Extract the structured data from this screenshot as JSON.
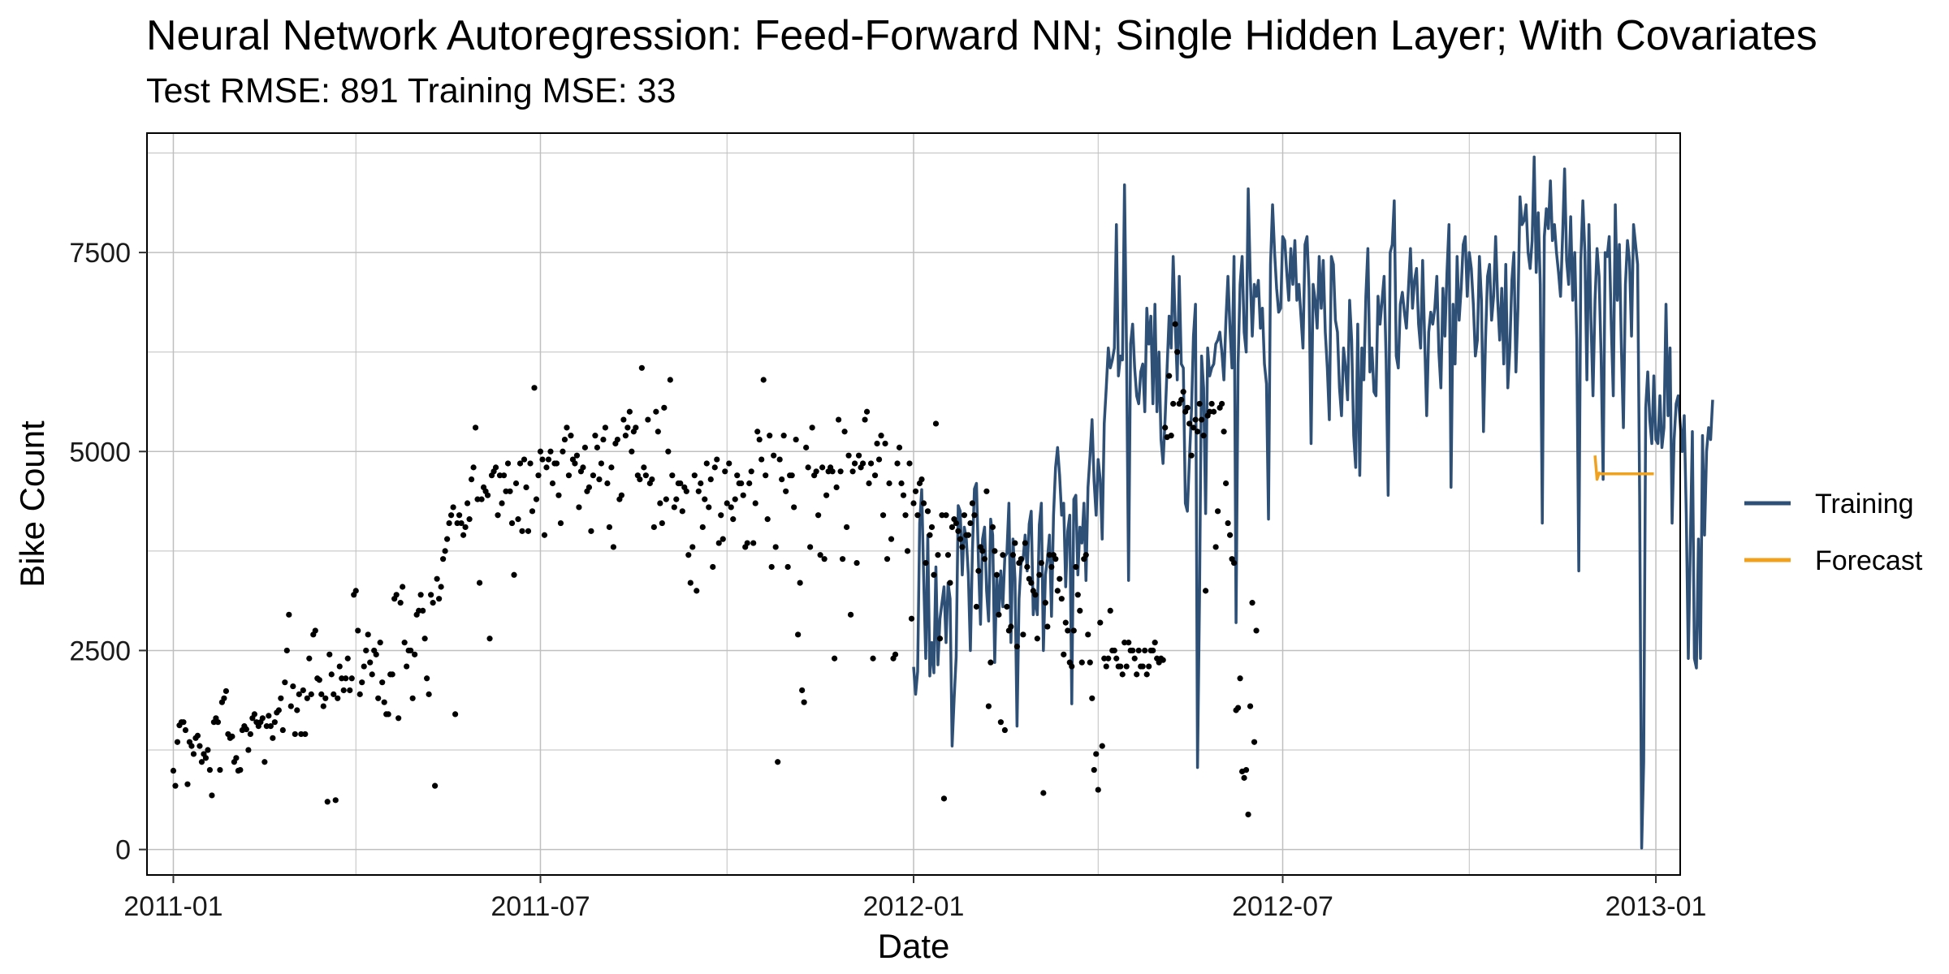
{
  "title": "Neural Network Autoregression: Feed-Forward NN; Single Hidden Layer; With Covariates",
  "subtitle": "Test RMSE: 891 Training MSE: 33",
  "chart_data": {
    "type": "line",
    "xlabel": "Date",
    "ylabel": "Bike Count",
    "x_range": [
      "2010-12-19",
      "2013-01-13"
    ],
    "y_range": [
      -320,
      9000
    ],
    "x_ticks": [
      {
        "label": "2011-01",
        "date": "2011-01-01"
      },
      {
        "label": "2011-07",
        "date": "2011-07-01"
      },
      {
        "label": "2012-01",
        "date": "2012-01-01"
      },
      {
        "label": "2012-07",
        "date": "2012-07-01"
      },
      {
        "label": "2013-01",
        "date": "2013-01-01"
      }
    ],
    "y_ticks": [
      0,
      2500,
      5000,
      7500
    ],
    "grid": true,
    "legend_position": "right",
    "colors": {
      "points": "#000000",
      "training": "#2e5077",
      "forecast": "#f0a11e",
      "grid": "#bfbfbf"
    },
    "series": [
      {
        "name": "Training",
        "color": "#2e5077",
        "start": "2012-01-01",
        "values": [
          2294,
          1951,
          2236,
          4100,
          4521,
          3380,
          2400,
          3950,
          2180,
          2600,
          2220,
          3550,
          2320,
          2900,
          3100,
          3300,
          2600,
          3350,
          3150,
          1300,
          1900,
          2420,
          4320,
          4250,
          3450,
          4050,
          3900,
          3450,
          2500,
          3750,
          4530,
          4600,
          3600,
          2830,
          3900,
          4050,
          3250,
          2870,
          4150,
          3950,
          2350,
          3450,
          2950,
          3500,
          3050,
          3680,
          3720,
          4350,
          2600,
          3900,
          3400,
          1550,
          3150,
          3600,
          3650,
          3950,
          3500,
          4090,
          4250,
          2950,
          3200,
          2950,
          4080,
          4350,
          2500,
          3450,
          3650,
          3950,
          2930,
          4200,
          4800,
          5050,
          4700,
          4200,
          4350,
          3300,
          4000,
          4200,
          1830,
          4400,
          4450,
          3450,
          4050,
          3850,
          4350,
          3380,
          4550,
          4950,
          5400,
          4630,
          4200,
          4900,
          4650,
          3900,
          5350,
          5800,
          6300,
          6050,
          6150,
          6300,
          7850,
          5950,
          6200,
          6150,
          8350,
          6250,
          3380,
          6350,
          6600,
          6050,
          5700,
          5600,
          6000,
          6100,
          5500,
          6800,
          6350,
          6700,
          5600,
          6850,
          5500,
          6250,
          5150,
          4850,
          5400,
          6050,
          6700,
          6300,
          7450,
          6600,
          5900,
          7200,
          6100,
          6050,
          4350,
          4250,
          4900,
          5500,
          6450,
          6850,
          1030,
          3210,
          6200,
          5800,
          4220,
          6300,
          5950,
          6050,
          6100,
          6350,
          6400,
          6500,
          6250,
          5900,
          6650,
          7200,
          6550,
          6050,
          7450,
          2850,
          6100,
          7100,
          7450,
          6500,
          6250,
          8300,
          7200,
          6450,
          7100,
          6950,
          7150,
          6550,
          6800,
          6100,
          5850,
          4150,
          7350,
          8100,
          7500,
          7050,
          6750,
          6800,
          7700,
          7650,
          7250,
          6900,
          7550,
          7100,
          7650,
          6900,
          7100,
          6700,
          6300,
          7600,
          7700,
          7050,
          5100,
          7100,
          6900,
          6550,
          7450,
          6800,
          7400,
          6500,
          6050,
          5400,
          7450,
          7350,
          6650,
          6500,
          5800,
          5450,
          6300,
          6050,
          5650,
          6900,
          6400,
          5200,
          4800,
          6600,
          4700,
          6300,
          5900,
          6950,
          7550,
          6000,
          6300,
          5750,
          5700,
          6950,
          6600,
          6900,
          7200,
          6150,
          4450,
          7500,
          7600,
          8150,
          6200,
          6050,
          6850,
          7000,
          6750,
          6550,
          7050,
          7550,
          6800,
          7150,
          7300,
          6600,
          6300,
          7400,
          6400,
          5450,
          6500,
          6750,
          6600,
          6800,
          7200,
          6250,
          5800,
          7050,
          6450,
          7250,
          7850,
          4550,
          6850,
          6100,
          7450,
          6650,
          7050,
          7600,
          7700,
          6950,
          7500,
          7300,
          6850,
          6200,
          6400,
          7450,
          6900,
          5250,
          6400,
          7200,
          7350,
          6650,
          6950,
          7700,
          6900,
          6400,
          7050,
          6100,
          7350,
          5800,
          6300,
          7150,
          7500,
          6000,
          6800,
          8200,
          7850,
          7900,
          8100,
          7500,
          7300,
          7650,
          8700,
          7250,
          8000,
          7100,
          4100,
          7700,
          8050,
          7800,
          8400,
          7650,
          7850,
          7500,
          7250,
          6950,
          7700,
          8550,
          7400,
          7100,
          7950,
          6900,
          7500,
          6400,
          3500,
          7400,
          8150,
          7500,
          5900,
          7850,
          6650,
          5700,
          6900,
          7550,
          7200,
          6200,
          4650,
          7500,
          7450,
          7700,
          6600,
          5700,
          8100,
          6900,
          7600,
          6300,
          5300,
          7100,
          7650,
          7400,
          6450,
          7850,
          7600,
          7350,
          4450,
          18,
          1100,
          5550,
          6000,
          5400,
          5100,
          5950,
          5150,
          5100,
          5700,
          5050,
          5300,
          6850,
          5450,
          6300,
          4100,
          5150,
          5600,
          5700,
          5350,
          5000,
          5450,
          4200,
          2400,
          3850,
          5250,
          2400,
          2280,
          3900,
          2400,
          5200,
          3950,
          5000,
          5300,
          5150,
          5650
        ]
      },
      {
        "name": "Forecast",
        "color": "#f0a11e",
        "start": "2012-12-02",
        "values": [
          4950,
          4650,
          4730,
          4720,
          4720,
          4720,
          4720,
          4720,
          4720,
          4720,
          4720,
          4720,
          4720,
          4720,
          4720,
          4720,
          4720,
          4720,
          4720,
          4720,
          4720,
          4720,
          4720,
          4720,
          4720,
          4720,
          4720,
          4720,
          4720,
          4720
        ]
      }
    ],
    "observed_points": {
      "start": "2011-01-01",
      "values": [
        990,
        800,
        1350,
        1560,
        1600,
        1600,
        1500,
        820,
        1350,
        1300,
        1200,
        1400,
        1430,
        1300,
        1100,
        1200,
        1150,
        1250,
        1000,
        680,
        1600,
        1650,
        1600,
        1000,
        1850,
        1900,
        1990,
        1450,
        1400,
        1420,
        1100,
        1150,
        990,
        1000,
        1500,
        1550,
        1510,
        1250,
        1450,
        1650,
        1700,
        1600,
        1550,
        1600,
        1650,
        1100,
        1550,
        1680,
        1550,
        1400,
        1600,
        1720,
        1750,
        1900,
        1500,
        2100,
        2500,
        2950,
        1800,
        2050,
        1450,
        1750,
        1950,
        1450,
        2000,
        1450,
        1900,
        2400,
        1950,
        2700,
        2750,
        2150,
        2130,
        1950,
        1800,
        1900,
        600,
        2450,
        2200,
        1950,
        620,
        1900,
        2300,
        2150,
        2000,
        2150,
        2400,
        2000,
        2150,
        3200,
        3250,
        2750,
        1950,
        2100,
        2300,
        2500,
        2700,
        2350,
        2200,
        2500,
        2450,
        1900,
        2600,
        2100,
        1850,
        1700,
        1700,
        2200,
        2200,
        3150,
        3200,
        1650,
        3100,
        3300,
        2600,
        2300,
        2500,
        2500,
        1900,
        2450,
        2950,
        3000,
        3200,
        3000,
        2650,
        2150,
        1950,
        3200,
        3100,
        800,
        3400,
        3150,
        3300,
        3650,
        3750,
        3900,
        4100,
        4200,
        4300,
        1700,
        4100,
        4200,
        4100,
        3950,
        4050,
        4350,
        4150,
        4650,
        4800,
        5300,
        4400,
        3350,
        4400,
        4550,
        4500,
        4450,
        2650,
        4700,
        4750,
        4800,
        4200,
        4700,
        4350,
        4700,
        4500,
        4850,
        4500,
        4100,
        3450,
        4600,
        4150,
        4850,
        4000,
        4900,
        4550,
        4000,
        4850,
        4250,
        5800,
        4400,
        4700,
        5000,
        4900,
        3950,
        4800,
        4900,
        5000,
        4600,
        4850,
        4850,
        4450,
        4100,
        5000,
        5150,
        5300,
        4700,
        5200,
        4900,
        4850,
        4950,
        4300,
        4750,
        4800,
        5050,
        4500,
        4550,
        4000,
        4700,
        5200,
        5050,
        4650,
        4850,
        5150,
        5300,
        4600,
        4050,
        4800,
        3800,
        5100,
        5150,
        4400,
        4450,
        5400,
        5200,
        5300,
        5500,
        5000,
        5250,
        5300,
        4700,
        4650,
        6050,
        4800,
        4700,
        5400,
        4600,
        4650,
        4050,
        5500,
        5250,
        4350,
        4100,
        5550,
        4400,
        5000,
        5900,
        4700,
        4300,
        4400,
        4600,
        4600,
        4250,
        4550,
        4500,
        3700,
        3350,
        3800,
        4700,
        3250,
        4500,
        4600,
        4050,
        4400,
        4850,
        4300,
        4650,
        3550,
        4800,
        4900,
        3850,
        4200,
        3900,
        4750,
        4350,
        4850,
        4300,
        4150,
        4400,
        4700,
        4600,
        4600,
        4450,
        3800,
        3850,
        4600,
        4750,
        3850,
        4350,
        5250,
        5150,
        4900,
        5900,
        4700,
        4150,
        5200,
        3550,
        4950,
        3800,
        1100,
        4900,
        4650,
        5200,
        4500,
        3550,
        4700,
        4700,
        4300,
        5150,
        2700,
        3350,
        2000,
        1850,
        5050,
        4800,
        3800,
        5300,
        4700,
        4750,
        4200,
        3700,
        4800,
        3650,
        4450,
        4750,
        4800,
        4750,
        2400,
        4550,
        5400,
        4750,
        3650,
        5250,
        4050,
        4950,
        2950,
        4750,
        4850,
        3600,
        4950,
        4800,
        4850,
        5400,
        5500,
        4600,
        4850,
        2400,
        4700,
        5100,
        4900,
        5200,
        4200,
        5100,
        3650,
        4600,
        3900,
        2400,
        2450,
        4850,
        5050,
        4600,
        4450,
        4200,
        3750,
        4850,
        2900,
        4350,
        4500,
        4200,
        4600,
        4650,
        4350,
        3600,
        4250,
        3950,
        4050,
        3450,
        5350,
        3700,
        2650,
        4200,
        640,
        4200,
        3700,
        3350,
        4050,
        4150,
        4100,
        4000,
        3900,
        3800,
        4200,
        3950,
        3950,
        4100,
        4350,
        4200,
        3050,
        3500,
        3800,
        3750,
        3650,
        4500,
        1800,
        2350,
        4050,
        3750,
        3450,
        2950,
        1600,
        3700,
        1500,
        3050,
        2750,
        2800,
        3700,
        3850,
        2550,
        3600,
        3650,
        2700,
        3850,
        3550,
        3400,
        3350,
        3250,
        3200,
        2650,
        3450,
        3600,
        710,
        3100,
        2800,
        3700,
        3550,
        3700,
        3650,
        3250,
        3400,
        3150,
        2450,
        2850,
        2750,
        2350,
        2300,
        2750,
        3550,
        3200,
        3000,
        2350,
        3650,
        3700,
        2700,
        2350,
        1900,
        1000,
        1200,
        750,
        2850,
        1300,
        2400,
        2300,
        2400,
        3000,
        2500,
        2500,
        2400,
        2300,
        2300,
        2200,
        2600,
        2300,
        2600,
        2500,
        2500,
        2400,
        2200,
        2500,
        2300,
        2300,
        2500,
        2200,
        2300,
        2500,
        2500,
        2600,
        2400,
        2350,
        2400,
        2380,
        5300,
        5180,
        5950,
        5200,
        5600,
        6600,
        6250,
        5600,
        5650,
        5750,
        5500,
        5550,
        5350,
        4950,
        5300,
        5400,
        5250,
        5600,
        5400,
        5200,
        3250,
        5450,
        5500,
        5600,
        5500,
        3800,
        4250,
        5550,
        5600,
        5250,
        4600,
        4100,
        3950,
        3650,
        3600,
        1750,
        1780,
        2150,
        980,
        900,
        1000,
        440,
        1800,
        3100,
        1350,
        2750
      ]
    }
  },
  "legend": {
    "items": [
      {
        "label": "Training",
        "color": "#2e5077"
      },
      {
        "label": "Forecast",
        "color": "#f0a11e"
      }
    ]
  }
}
